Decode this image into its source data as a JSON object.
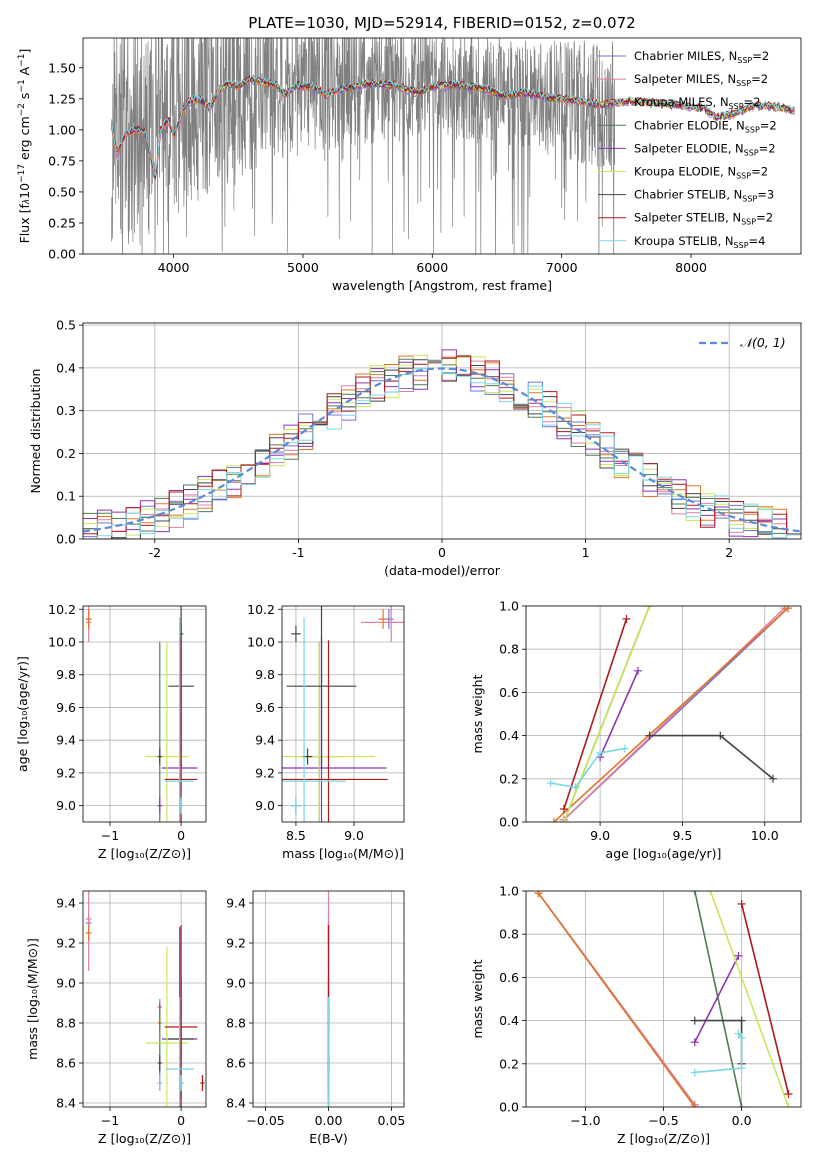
{
  "figure_title": "PLATE=1030, MJD=52914, FIBERID=0152, z=0.072",
  "colors": {
    "Chabrier MILES": "#6f76d6",
    "Salpeter MILES": "#e27fa1",
    "Kroupa MILES": "#e07528",
    "Chabrier ELODIE": "#4e7d52",
    "Salpeter ELODIE": "#8e33b0",
    "Kroupa ELODIE": "#c8e85a",
    "Chabrier STELIB": "#444444",
    "Salpeter STELIB": "#b01818",
    "Kroupa STELIB": "#7dd6e4",
    "observed": "#808080",
    "gaussian": "#5b8bd6"
  },
  "chart_data": [
    {
      "type": "line",
      "id": "spectrum",
      "title": "PLATE=1030, MJD=52914, FIBERID=0152, z=0.072",
      "xlabel": "wavelength [Angstrom, rest frame]",
      "ylabel_parts": [
        "Flux [f",
        "λ",
        "10",
        "−17",
        " erg cm",
        "−2",
        " s",
        "−1",
        " A",
        "−1",
        "]"
      ],
      "xlim": [
        3300,
        8850
      ],
      "ylim": [
        0,
        1.74
      ],
      "xticks": [
        4000,
        5000,
        6000,
        7000,
        8000
      ],
      "yticks": [
        0.0,
        0.25,
        0.5,
        0.75,
        1.0,
        1.25,
        1.5
      ],
      "ytick_labels": [
        "0.00",
        "0.25",
        "0.50",
        "0.75",
        "1.00",
        "1.25",
        "1.50"
      ],
      "grid": false,
      "legend_position": "top-right",
      "observed": {
        "x_start": 3520,
        "x_end": 7410,
        "continuum": [
          [
            3520,
            1.02
          ],
          [
            3700,
            1.0
          ],
          [
            3900,
            1.08
          ],
          [
            4100,
            1.22
          ],
          [
            4300,
            1.3
          ],
          [
            4600,
            1.38
          ],
          [
            5000,
            1.4
          ],
          [
            5500,
            1.4
          ],
          [
            6000,
            1.37
          ],
          [
            6500,
            1.3
          ],
          [
            7000,
            1.24
          ],
          [
            7410,
            1.2
          ]
        ],
        "noise": [
          [
            3520,
            1.0
          ],
          [
            3800,
            0.95
          ],
          [
            4300,
            0.8
          ],
          [
            5000,
            0.6
          ],
          [
            5600,
            0.5
          ],
          [
            6200,
            0.45
          ],
          [
            6800,
            0.45
          ],
          [
            7410,
            0.55
          ]
        ]
      },
      "model_points": [
        [
          3520,
          1.05
        ],
        [
          3560,
          0.8
        ],
        [
          3620,
          0.95
        ],
        [
          3700,
          1.0
        ],
        [
          3780,
          0.98
        ],
        [
          3860,
          0.6
        ],
        [
          3900,
          1.0
        ],
        [
          3960,
          1.08
        ],
        [
          4000,
          0.95
        ],
        [
          4100,
          1.22
        ],
        [
          4200,
          1.25
        ],
        [
          4280,
          1.18
        ],
        [
          4340,
          1.3
        ],
        [
          4420,
          1.38
        ],
        [
          4500,
          1.35
        ],
        [
          4600,
          1.41
        ],
        [
          4700,
          1.38
        ],
        [
          4800,
          1.36
        ],
        [
          4860,
          1.28
        ],
        [
          4950,
          1.36
        ],
        [
          5100,
          1.34
        ],
        [
          5170,
          1.28
        ],
        [
          5300,
          1.33
        ],
        [
          5500,
          1.37
        ],
        [
          5700,
          1.36
        ],
        [
          5890,
          1.3
        ],
        [
          6000,
          1.35
        ],
        [
          6200,
          1.36
        ],
        [
          6400,
          1.33
        ],
        [
          6563,
          1.27
        ],
        [
          6700,
          1.3
        ],
        [
          6900,
          1.26
        ],
        [
          7100,
          1.24
        ],
        [
          7300,
          1.2
        ],
        [
          7500,
          1.23
        ],
        [
          7700,
          1.22
        ],
        [
          7900,
          1.2
        ],
        [
          8100,
          1.17
        ],
        [
          8200,
          1.1
        ],
        [
          8300,
          1.12
        ],
        [
          8500,
          1.2
        ],
        [
          8700,
          1.18
        ],
        [
          8800,
          1.15
        ]
      ],
      "series": [
        {
          "name": "Chabrier MILES, N",
          "sub": "SSP",
          "suffix": "=2",
          "x_start": 3520
        },
        {
          "name": "Salpeter MILES, N",
          "sub": "SSP",
          "suffix": "=2",
          "x_start": 3520
        },
        {
          "name": "Kroupa MILES, N",
          "sub": "SSP",
          "suffix": "=2",
          "x_start": 3520
        },
        {
          "name": "Chabrier ELODIE, N",
          "sub": "SSP",
          "suffix": "=2",
          "x_start": 4100
        },
        {
          "name": "Salpeter ELODIE, N",
          "sub": "SSP",
          "suffix": "=2",
          "x_start": 4100
        },
        {
          "name": "Kroupa ELODIE, N",
          "sub": "SSP",
          "suffix": "=2",
          "x_start": 4100
        },
        {
          "name": "Chabrier STELIB, N",
          "sub": "SSP",
          "suffix": "=3",
          "x_start": 3520
        },
        {
          "name": "Salpeter STELIB, N",
          "sub": "SSP",
          "suffix": "=2",
          "x_start": 3520
        },
        {
          "name": "Kroupa STELIB, N",
          "sub": "SSP",
          "suffix": "=4",
          "x_start": 3520
        }
      ]
    },
    {
      "type": "histogram",
      "id": "residuals",
      "xlabel": "(data-model)/error",
      "ylabel": "Normed distribution",
      "xlim": [
        -2.5,
        2.5
      ],
      "ylim": [
        0,
        0.505
      ],
      "xticks": [
        -2,
        -1,
        0,
        1,
        2
      ],
      "yticks": [
        0.0,
        0.1,
        0.2,
        0.3,
        0.4,
        0.5
      ],
      "ytick_labels": [
        "0.0",
        "0.1",
        "0.2",
        "0.3",
        "0.4",
        "0.5"
      ],
      "grid": true,
      "legend_position": "top-right",
      "gaussian_label": "𝒩(0, 1)",
      "bin_width": 0.1
    },
    {
      "type": "scatter",
      "id": "age-vs-Z",
      "xlabel": "Z [log₁₀(Z/Z⊙)]",
      "ylabel": "age  [log₁₀(age/yr)]",
      "xlim": [
        -1.38,
        0.35
      ],
      "ylim": [
        8.9,
        10.22
      ],
      "xticks": [
        -1,
        0
      ],
      "xtick_labels": [
        "−1",
        "0"
      ],
      "yticks": [
        9.0,
        9.2,
        9.4,
        9.6,
        9.8,
        10.0,
        10.2
      ],
      "ytick_labels": [
        "9.0",
        "9.2",
        "9.4",
        "9.6",
        "9.8",
        "10.0",
        "10.2"
      ],
      "grid": true
    },
    {
      "type": "scatter",
      "id": "age-vs-mass",
      "xlabel": "mass [log₁₀(M/M⊙)]",
      "xlim": [
        8.38,
        9.43
      ],
      "ylim": [
        8.9,
        10.22
      ],
      "xticks": [
        8.5,
        9.0
      ],
      "xtick_labels": [
        "8.5",
        "9.0"
      ],
      "yticks": [
        9.0,
        9.2,
        9.4,
        9.6,
        9.8,
        10.0,
        10.2
      ],
      "ytick_labels": [
        "9.0",
        "9.2",
        "9.4",
        "9.6",
        "9.8",
        "10.0",
        "10.2"
      ],
      "grid": true
    },
    {
      "type": "line",
      "id": "weight-vs-age",
      "xlabel": "age  [log₁₀(age/yr)]",
      "ylabel": "mass weight",
      "xlim": [
        8.55,
        10.22
      ],
      "ylim": [
        0,
        1
      ],
      "xticks": [
        9.0,
        9.5,
        10.0
      ],
      "xtick_labels": [
        "9.0",
        "9.5",
        "10.0"
      ],
      "yticks": [
        0.0,
        0.2,
        0.4,
        0.6,
        0.8,
        1.0
      ],
      "ytick_labels": [
        "0.0",
        "0.2",
        "0.4",
        "0.6",
        "0.8",
        "1.0"
      ],
      "grid": true
    },
    {
      "type": "scatter",
      "id": "mass-vs-Z",
      "xlabel": "Z [log₁₀(Z/Z⊙)]",
      "ylabel": "mass [log₁₀(M/M⊙)]",
      "xlim": [
        -1.38,
        0.35
      ],
      "ylim": [
        8.38,
        9.46
      ],
      "xticks": [
        -1,
        0
      ],
      "xtick_labels": [
        "−1",
        "0"
      ],
      "yticks": [
        8.4,
        8.6,
        8.8,
        9.0,
        9.2,
        9.4
      ],
      "ytick_labels": [
        "8.4",
        "8.6",
        "8.8",
        "9.0",
        "9.2",
        "9.4"
      ],
      "grid": true
    },
    {
      "type": "scatter",
      "id": "mass-vs-EBV",
      "xlabel": "E(B-V)",
      "xlim": [
        -0.06,
        0.06
      ],
      "ylim": [
        8.38,
        9.46
      ],
      "xticks": [
        -0.05,
        0.0,
        0.05
      ],
      "xtick_labels": [
        "−0.05",
        "0.00",
        "0.05"
      ],
      "yticks": [
        8.4,
        8.6,
        8.8,
        9.0,
        9.2,
        9.4
      ],
      "ytick_labels": [
        "8.4",
        "8.6",
        "8.8",
        "9.0",
        "9.2",
        "9.4"
      ],
      "grid": true
    },
    {
      "type": "line",
      "id": "weight-vs-Z",
      "xlabel": "Z [log₁₀(Z/Z⊙)]",
      "ylabel": "mass weight",
      "xlim": [
        -1.38,
        0.38
      ],
      "ylim": [
        0,
        1
      ],
      "xticks": [
        -1.0,
        -0.5,
        0.0
      ],
      "xtick_labels": [
        "−1.0",
        "−0.5",
        "0.0"
      ],
      "yticks": [
        0.0,
        0.2,
        0.4,
        0.6,
        0.8,
        1.0
      ],
      "ytick_labels": [
        "0.0",
        "0.2",
        "0.4",
        "0.6",
        "0.8",
        "1.0"
      ],
      "grid": true
    }
  ],
  "fits": [
    {
      "name": "Chabrier MILES",
      "components": [
        {
          "age": 10.14,
          "age_err": 0.06,
          "Z": -1.3,
          "Z_err": 0.04,
          "mass": 9.3,
          "mass_err": 0.04,
          "weight": 0.99
        },
        {
          "age": 8.78,
          "age_err": 0.05,
          "Z": -0.3,
          "Z_err": 0.03,
          "mass": 8.88,
          "mass_err": 0.04,
          "weight": 0.01
        }
      ]
    },
    {
      "name": "Salpeter MILES",
      "components": [
        {
          "age": 10.12,
          "age_err": 0.12,
          "Z": -1.3,
          "Z_err": 0.04,
          "mass": 9.32,
          "mass_err": 0.26,
          "weight": 0.99
        },
        {
          "age": 8.78,
          "age_err": 0.05,
          "Z": -0.3,
          "Z_err": 0.03,
          "mass": 8.88,
          "mass_err": 0.04,
          "weight": 0.01
        }
      ]
    },
    {
      "name": "Kroupa MILES",
      "components": [
        {
          "age": 10.14,
          "age_err": 0.06,
          "Z": -1.3,
          "Z_err": 0.04,
          "mass": 9.25,
          "mass_err": 0.04,
          "weight": 0.99
        },
        {
          "age": 8.72,
          "age_err": 0.05,
          "Z": -0.3,
          "Z_err": 0.03,
          "mass": 8.8,
          "mass_err": 0.04,
          "weight": 0.0
        }
      ]
    },
    {
      "name": "Chabrier ELODIE",
      "components": [
        {
          "age": 9.3,
          "age_err": 0.7,
          "Z": -0.3,
          "Z_err": 0.03,
          "mass": 8.7,
          "mass_err": 0.2,
          "weight": 1.0
        },
        {
          "age": 8.78,
          "age_err": 0.05,
          "Z": 0.0,
          "Z_err": 0.03,
          "mass": 8.5,
          "mass_err": 0.04,
          "weight": 0.0
        }
      ]
    },
    {
      "name": "Salpeter ELODIE",
      "components": [
        {
          "age": 9.23,
          "age_err": 0.8,
          "Z": -0.02,
          "Z_err": 0.25,
          "mass": 8.72,
          "mass_err": 0.56,
          "weight": 0.7
        },
        {
          "age": 9.0,
          "age_err": 0.05,
          "Z": -0.3,
          "Z_err": 0.03,
          "mass": 8.5,
          "mass_err": 0.04,
          "weight": 0.3
        }
      ]
    },
    {
      "name": "Kroupa ELODIE",
      "components": [
        {
          "age": 9.3,
          "age_err": 0.7,
          "Z": -0.2,
          "Z_err": 0.3,
          "mass": 8.7,
          "mass_err": 0.48,
          "weight": 1.0
        },
        {
          "age": 8.78,
          "age_err": 0.05,
          "Z": 0.3,
          "Z_err": 0.03,
          "mass": 8.5,
          "mass_err": 0.04,
          "weight": 0.0
        }
      ]
    },
    {
      "name": "Chabrier STELIB",
      "components": [
        {
          "age": 9.73,
          "age_err": 0.5,
          "Z": 0.0,
          "Z_err": 0.18,
          "mass": 8.72,
          "mass_err": 0.3,
          "weight": 0.4
        },
        {
          "age": 9.3,
          "age_err": 0.05,
          "Z": -0.3,
          "Z_err": 0.03,
          "mass": 8.6,
          "mass_err": 0.04,
          "weight": 0.4
        },
        {
          "age": 10.05,
          "age_err": 0.05,
          "Z": 0.0,
          "Z_err": 0.03,
          "mass": 8.5,
          "mass_err": 0.04,
          "weight": 0.2
        }
      ]
    },
    {
      "name": "Salpeter STELIB",
      "components": [
        {
          "age": 9.16,
          "age_err": 0.85,
          "Z": 0.0,
          "Z_err": 0.23,
          "mass": 8.78,
          "mass_err": 0.51,
          "weight": 0.94
        },
        {
          "age": 8.78,
          "age_err": 0.05,
          "Z": 0.3,
          "Z_err": 0.03,
          "mass": 8.5,
          "mass_err": 0.04,
          "weight": 0.06
        }
      ]
    },
    {
      "name": "Kroupa STELIB",
      "components": [
        {
          "age": 9.15,
          "age_err": 1.0,
          "Z": -0.02,
          "Z_err": 0.2,
          "mass": 8.57,
          "mass_err": 0.36,
          "weight": 0.34
        },
        {
          "age": 9.0,
          "age_err": 0.05,
          "Z": 0.0,
          "Z_err": 0.03,
          "mass": 8.5,
          "mass_err": 0.04,
          "weight": 0.32
        },
        {
          "age": 8.85,
          "age_err": 0.05,
          "Z": -0.3,
          "Z_err": 0.03,
          "mass": 8.5,
          "mass_err": 0.04,
          "weight": 0.16
        },
        {
          "age": 8.7,
          "age_err": 0.05,
          "Z": 0.0,
          "Z_err": 0.03,
          "mass": 8.5,
          "mass_err": 0.04,
          "weight": 0.18
        }
      ]
    }
  ]
}
